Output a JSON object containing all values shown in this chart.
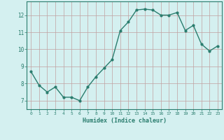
{
  "x": [
    0,
    1,
    2,
    3,
    4,
    5,
    6,
    7,
    8,
    9,
    10,
    11,
    12,
    13,
    14,
    15,
    16,
    17,
    18,
    19,
    20,
    21,
    22,
    23
  ],
  "y": [
    8.7,
    7.9,
    7.5,
    7.8,
    7.2,
    7.2,
    7.0,
    7.8,
    8.4,
    8.9,
    9.4,
    11.1,
    11.6,
    12.3,
    12.35,
    12.3,
    12.0,
    12.0,
    12.15,
    11.1,
    11.4,
    10.3,
    9.9,
    10.2
  ],
  "xlabel": "Humidex (Indice chaleur)",
  "xlim": [
    -0.5,
    23.5
  ],
  "ylim": [
    6.5,
    12.8
  ],
  "line_color": "#2a7d6e",
  "bg_color": "#d4f0f0",
  "grid_color": "#c0a0a0",
  "tick_labels": [
    "0",
    "1",
    "2",
    "3",
    "4",
    "5",
    "6",
    "7",
    "8",
    "9",
    "10",
    "11",
    "12",
    "13",
    "14",
    "15",
    "16",
    "17",
    "18",
    "19",
    "20",
    "21",
    "22",
    "23"
  ],
  "yticks": [
    7,
    8,
    9,
    10,
    11,
    12
  ],
  "marker_size": 2.0,
  "line_width": 1.0
}
